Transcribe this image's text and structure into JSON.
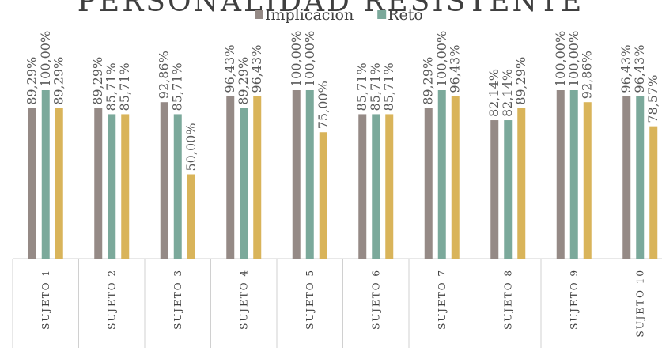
{
  "chart_data": {
    "type": "bar",
    "title": "PERSONALIDAD RESISTENTE",
    "xlabel": "",
    "ylabel": "",
    "ylim": [
      0,
      100
    ],
    "grid": false,
    "legend_position": "top",
    "categories": [
      "SUJETO 1",
      "SUJETO 2",
      "SUJETO 3",
      "SUJETO 4",
      "SUJETO 5",
      "SUJETO 6",
      "SUJETO 7",
      "SUJETO 8",
      "SUJETO 9",
      "SUJETO 10"
    ],
    "series": [
      {
        "name": "Implicación",
        "color": "#958a86",
        "values": [
          89.29,
          89.29,
          92.86,
          96.43,
          100.0,
          85.71,
          89.29,
          82.14,
          100.0,
          96.43
        ],
        "labels": [
          "89,29%",
          "89,29%",
          "92,86%",
          "96,43%",
          "100,00%",
          "85,71%",
          "89,29%",
          "82,14%",
          "100,00%",
          "96,43%"
        ]
      },
      {
        "name": "Reto",
        "color": "#7ba99b",
        "values": [
          100.0,
          85.71,
          85.71,
          89.29,
          100.0,
          85.71,
          100.0,
          82.14,
          100.0,
          96.43
        ],
        "labels": [
          "100,00%",
          "85,71%",
          "85,71%",
          "89,29%",
          "100,00%",
          "85,71%",
          "100,00%",
          "82,14%",
          "100,00%",
          "96,43%"
        ]
      },
      {
        "name": "",
        "color": "#d9b45a",
        "values": [
          89.29,
          85.71,
          50.0,
          96.43,
          75.0,
          85.71,
          96.43,
          89.29,
          92.86,
          78.57
        ],
        "labels": [
          "89,29%",
          "85,71%",
          "50,00%",
          "96,43%",
          "75,00%",
          "85,71%",
          "96,43%",
          "89,29%",
          "92,86%",
          "78,57%"
        ]
      }
    ]
  }
}
